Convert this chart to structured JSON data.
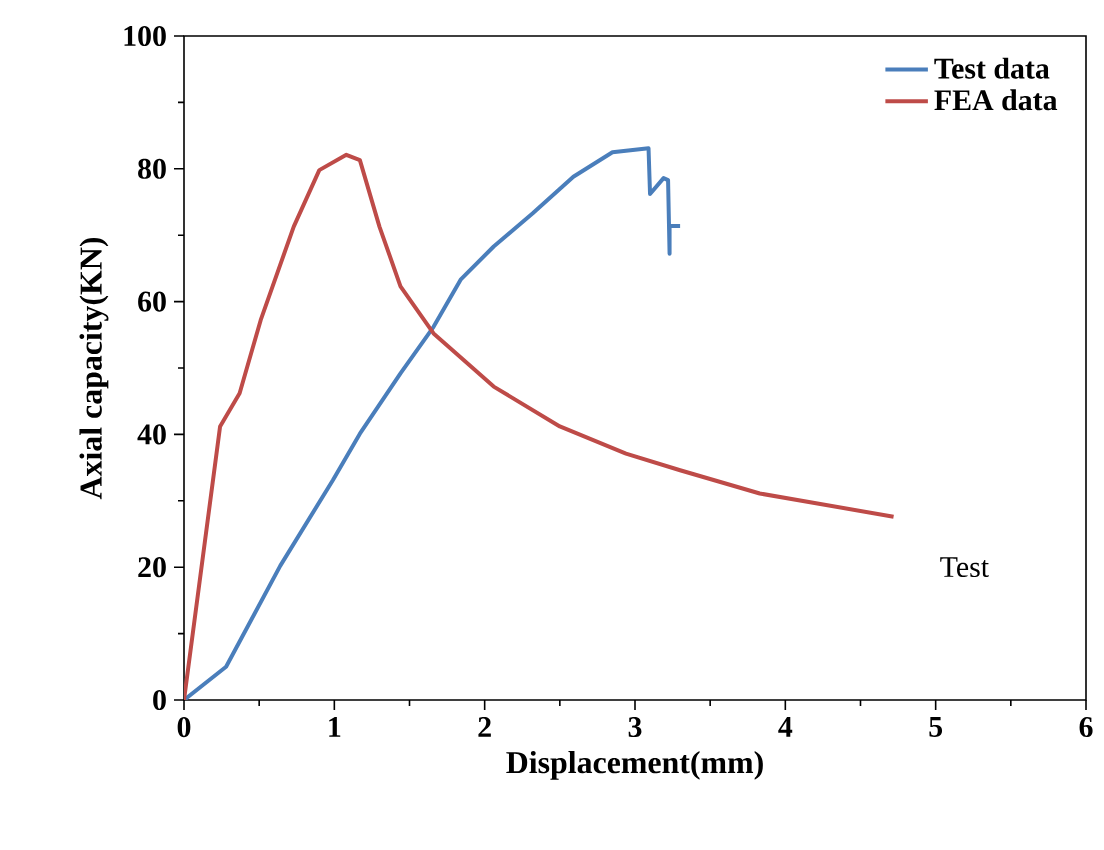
{
  "chart_data": {
    "type": "line",
    "xlabel": "Displacement(mm)",
    "ylabel": "Axial capacity(KN)",
    "xlim": [
      0,
      6
    ],
    "ylim": [
      0,
      100
    ],
    "xticks": [
      0,
      1,
      2,
      3,
      4,
      5,
      6
    ],
    "yticks": [
      0,
      20,
      40,
      60,
      80,
      100
    ],
    "legend": "top right",
    "grid": false,
    "marker": "none",
    "line_style": "solid",
    "annotations": [
      "Test"
    ],
    "series": [
      {
        "name": "Test data",
        "color": "#4a7ebb",
        "x": [
          0,
          0.28,
          0.64,
          0.99,
          1.17,
          1.44,
          1.66,
          1.84,
          2.06,
          2.32,
          2.59,
          2.85,
          3.09,
          3.1,
          3.19,
          3.22,
          3.23,
          3.23,
          3.3
        ],
        "values": [
          0,
          5,
          20.2,
          33.1,
          40.1,
          49.2,
          56.2,
          63.3,
          68.3,
          73.3,
          78.8,
          82.5,
          83.1,
          76.2,
          78.6,
          78.3,
          67.2,
          71.4,
          71.4
        ]
      },
      {
        "name": "FEA data",
        "color": "#be4b48",
        "x": [
          0,
          0.24,
          0.37,
          0.51,
          0.73,
          0.9,
          1.08,
          1.17,
          1.3,
          1.44,
          1.66,
          2.06,
          2.5,
          2.94,
          3.3,
          3.83,
          4.72
        ],
        "values": [
          0,
          41.2,
          46.2,
          57.2,
          71.3,
          79.8,
          82.1,
          81.3,
          71.3,
          62.3,
          55.2,
          47.2,
          41.2,
          37.1,
          34.6,
          31.1,
          27.6
        ]
      }
    ]
  }
}
